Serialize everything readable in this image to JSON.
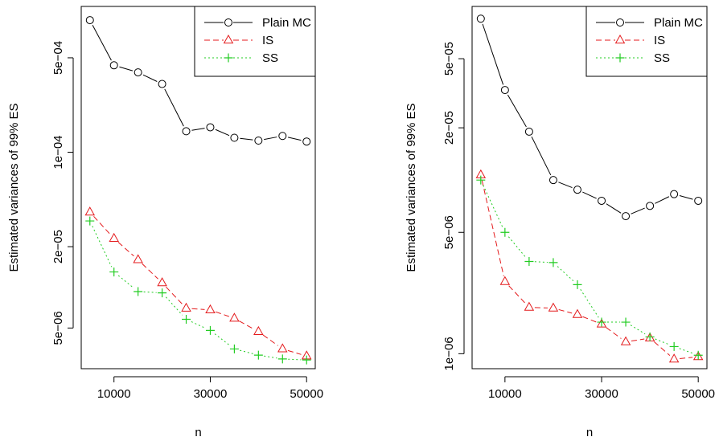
{
  "chart_data": [
    {
      "type": "line",
      "log_y": true,
      "xlabel": "n",
      "ylabel": "Estimated variances of 99% ES",
      "x": [
        5000,
        10000,
        15000,
        20000,
        25000,
        30000,
        35000,
        40000,
        45000,
        50000
      ],
      "x_ticks": [
        10000,
        30000,
        50000
      ],
      "x_tick_labels": [
        "10000",
        "30000",
        "50000"
      ],
      "y_ticks": [
        5e-06,
        2e-05,
        0.0001,
        0.0005
      ],
      "y_tick_labels": [
        "5e−06",
        "2e−05",
        "1e−04",
        "5e−04"
      ],
      "xlim": [
        3200,
        51800
      ],
      "ylim": [
        2.5e-06,
        0.0012
      ],
      "legend_position": "top-right",
      "series": [
        {
          "name": "Plain MC",
          "color": "#000000",
          "line": "solid",
          "marker": "circle",
          "values": [
            0.00095,
            0.00044,
            0.00039,
            0.00032,
            0.000143,
            0.000153,
            0.000128,
            0.000122,
            0.000132,
            0.00012
          ]
        },
        {
          "name": "IS",
          "color": "#e41a1c",
          "line": "dashed",
          "marker": "triangle",
          "values": [
            3.6e-05,
            2.3e-05,
            1.6e-05,
            1.08e-05,
            7e-06,
            6.8e-06,
            5.9e-06,
            4.7e-06,
            3.5e-06,
            3.1e-06
          ]
        },
        {
          "name": "SS",
          "color": "#22cc22",
          "line": "dotted",
          "marker": "plus",
          "values": [
            3.1e-05,
            1.3e-05,
            9.3e-06,
            9.1e-06,
            5.8e-06,
            4.8e-06,
            3.5e-06,
            3.15e-06,
            2.95e-06,
            2.9e-06
          ]
        }
      ]
    },
    {
      "type": "line",
      "log_y": true,
      "xlabel": "n",
      "ylabel": "Estimated variances of 99% ES",
      "x": [
        5000,
        10000,
        15000,
        20000,
        25000,
        30000,
        35000,
        40000,
        45000,
        50000
      ],
      "x_ticks": [
        10000,
        30000,
        50000
      ],
      "x_tick_labels": [
        "10000",
        "30000",
        "50000"
      ],
      "y_ticks": [
        1e-06,
        5e-06,
        2e-05,
        5e-05
      ],
      "y_tick_labels": [
        "1e−06",
        "5e−06",
        "2e−05",
        "5e−05"
      ],
      "xlim": [
        3200,
        51800
      ],
      "ylim": [
        8.2e-07,
        0.0001
      ],
      "legend_position": "top-right",
      "series": [
        {
          "name": "Plain MC",
          "color": "#000000",
          "line": "solid",
          "marker": "circle",
          "values": [
            8.5e-05,
            3.3e-05,
            1.9e-05,
            1e-05,
            8.8e-06,
            7.6e-06,
            6.2e-06,
            7.1e-06,
            8.3e-06,
            7.6e-06
          ]
        },
        {
          "name": "IS",
          "color": "#e41a1c",
          "line": "dashed",
          "marker": "triangle",
          "values": [
            1.07e-05,
            2.6e-06,
            1.85e-06,
            1.83e-06,
            1.68e-06,
            1.48e-06,
            1.17e-06,
            1.23e-06,
            9.3e-07,
            9.6e-07
          ]
        },
        {
          "name": "SS",
          "color": "#22cc22",
          "line": "dotted",
          "marker": "plus",
          "values": [
            1e-05,
            5e-06,
            3.4e-06,
            3.35e-06,
            2.5e-06,
            1.52e-06,
            1.52e-06,
            1.25e-06,
            1.1e-06,
            9.8e-07
          ]
        }
      ]
    }
  ]
}
